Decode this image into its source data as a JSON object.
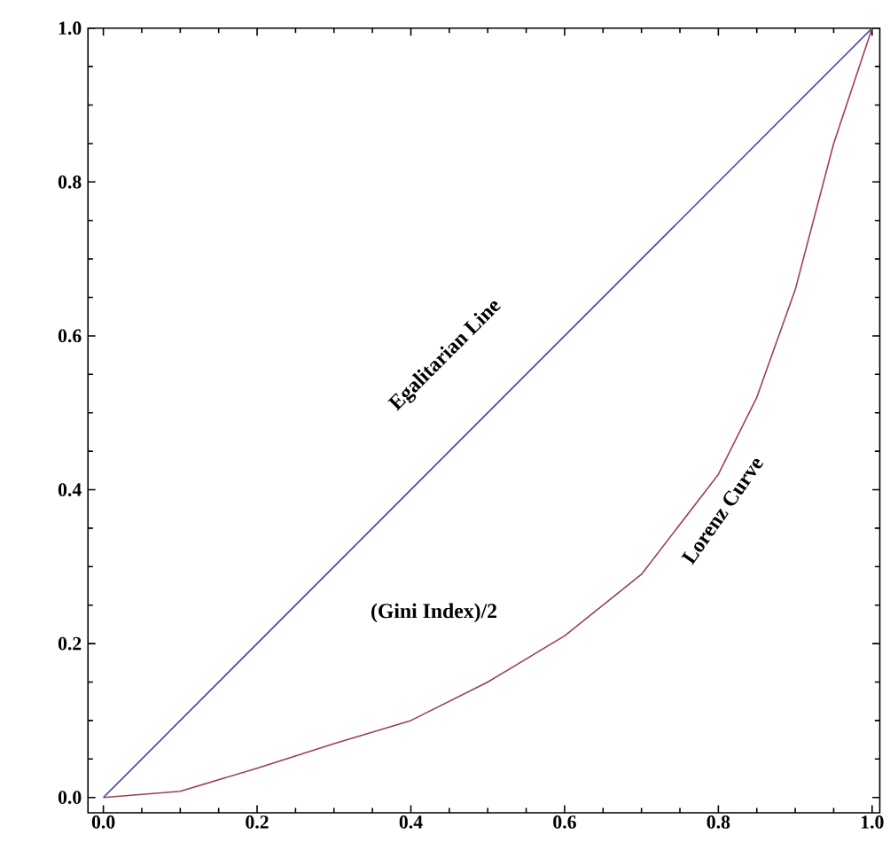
{
  "chart_data": {
    "type": "line",
    "xlim": [
      -0.02,
      1.01
    ],
    "ylim": [
      -0.02,
      1.0
    ],
    "xticks": [
      {
        "value": 0,
        "label": "0.0"
      },
      {
        "value": 0.2,
        "label": "0.2"
      },
      {
        "value": 0.4,
        "label": "0.4"
      },
      {
        "value": 0.6,
        "label": "0.6"
      },
      {
        "value": 0.8,
        "label": "0.8"
      },
      {
        "value": 1.0,
        "label": "1.0"
      }
    ],
    "yticks": [
      {
        "value": 0,
        "label": "0.0"
      },
      {
        "value": 0.2,
        "label": "0.2"
      },
      {
        "value": 0.4,
        "label": "0.4"
      },
      {
        "value": 0.6,
        "label": "0.6"
      },
      {
        "value": 0.8,
        "label": "0.8"
      },
      {
        "value": 1.0,
        "label": "1.0"
      }
    ],
    "series": [
      {
        "name": "Egalitarian Line",
        "color": "#3b3b9a",
        "x": [
          0,
          1
        ],
        "values": [
          0,
          1
        ]
      },
      {
        "name": "Lorenz Curve",
        "color": "#9a4050",
        "x": [
          0,
          0.1,
          0.2,
          0.3,
          0.4,
          0.5,
          0.6,
          0.7,
          0.8,
          0.85,
          0.9,
          0.95,
          1.0
        ],
        "values": [
          0,
          0.008,
          0.038,
          0.07,
          0.1,
          0.15,
          0.21,
          0.29,
          0.42,
          0.52,
          0.66,
          0.85,
          1.0
        ]
      }
    ],
    "annotations": [
      "(Gini Index)/2"
    ],
    "grid": false,
    "legend": false,
    "marker": "none",
    "line_style": "solid"
  }
}
